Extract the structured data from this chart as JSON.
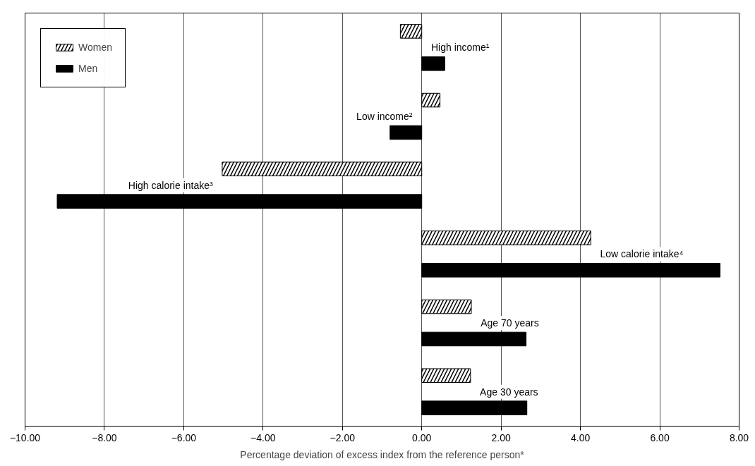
{
  "chart_data": {
    "type": "bar",
    "orientation": "horizontal",
    "xlabel": "Percentage deviation of excess index from the reference person*",
    "categories": [
      "High income¹",
      "Low income²",
      "High calorie intake³",
      "Low calorie intake⁴",
      "Age 70 years",
      "Age 30 years"
    ],
    "series": [
      {
        "name": "Women",
        "color": "#000000",
        "values": [
          -0.54,
          0.46,
          -5.03,
          4.26,
          1.25,
          1.23
        ]
      },
      {
        "name": "Men",
        "color": "#000000",
        "values": [
          0.58,
          -0.8,
          -9.19,
          7.52,
          2.63,
          2.65
        ]
      }
    ],
    "xlim": [
      -10,
      8
    ],
    "xticks": [
      {
        "value": -10,
        "label": "−10.00"
      },
      {
        "value": -8,
        "label": "−8.00"
      },
      {
        "value": -6,
        "label": "−6.00"
      },
      {
        "value": -4,
        "label": "−4.00"
      },
      {
        "value": -2,
        "label": "−2.00"
      },
      {
        "value": 0,
        "label": "0.00"
      },
      {
        "value": 2,
        "label": "2.00"
      },
      {
        "value": 4,
        "label": "4.00"
      },
      {
        "value": 6,
        "label": "6.00"
      },
      {
        "value": 8,
        "label": "8.00"
      }
    ],
    "grid": "x",
    "legend": "top left",
    "tick_labels": "x"
  }
}
